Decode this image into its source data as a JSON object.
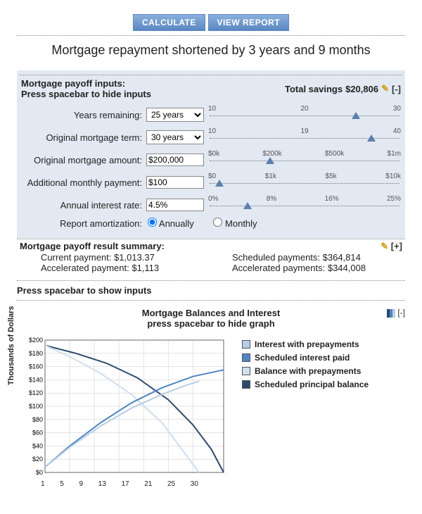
{
  "buttons": {
    "calculate": "CALCULATE",
    "view_report": "VIEW REPORT"
  },
  "title": "Mortgage repayment shortened by 3 years and 9 months",
  "inputs_header": {
    "line1": "Mortgage payoff inputs:",
    "line2": "Press spacebar to hide inputs",
    "total_savings_label": "Total savings",
    "total_savings_value": "$20,806",
    "toggle": "[-]"
  },
  "rows": {
    "years_remaining": {
      "label": "Years remaining:",
      "value": "25 years",
      "ticks": [
        "10",
        "20",
        "30"
      ],
      "thumb_pct": 77
    },
    "original_term": {
      "label": "Original mortgage term:",
      "value": "30 years",
      "ticks": [
        "10",
        "19",
        "40"
      ],
      "thumb_pct": 85
    },
    "original_amount": {
      "label": "Original mortgage amount:",
      "value": "$200,000",
      "ticks": [
        "$0k",
        "$200k",
        "$500k",
        "$1m"
      ],
      "thumb_pct": 32
    },
    "additional_payment": {
      "label": "Additional monthly payment:",
      "value": "$100",
      "ticks": [
        "$0",
        "$1k",
        "$5k",
        "$10k"
      ],
      "thumb_pct": 5
    },
    "interest_rate": {
      "label": "Annual interest rate:",
      "value": "4.5%",
      "ticks": [
        "0%",
        "8%",
        "16%",
        "25%"
      ],
      "thumb_pct": 20
    },
    "amortization": {
      "label": "Report amortization:",
      "opt1": "Annually",
      "opt2": "Monthly"
    }
  },
  "summary": {
    "title": "Mortgage payoff result summary:",
    "toggle": "[+]",
    "current_payment": "Current payment: $1,013.37",
    "accelerated_payment": "Accelerated payment: $1,113",
    "scheduled_payments": "Scheduled payments: $364,814",
    "accelerated_payments": "Accelerated payments: $344,008"
  },
  "show_inputs": "Press spacebar to show inputs",
  "chart": {
    "title": "Mortgage Balances and Interest",
    "subtitle": "press spacebar to hide graph",
    "toggle": "[-]",
    "ylabel": "Thousands of Dollars",
    "yticks": [
      "$200",
      "$180",
      "$160",
      "$140",
      "$120",
      "$100",
      "$80",
      "$60",
      "$40",
      "$20",
      "$0"
    ],
    "xticks": [
      "1",
      "5",
      "9",
      "13",
      "17",
      "21",
      "25",
      "30"
    ],
    "xlim": [
      1,
      30
    ],
    "ylim": [
      0,
      200
    ],
    "legend": [
      {
        "label": "Interest with prepayments",
        "color": "#b8cde6"
      },
      {
        "label": "Scheduled interest paid",
        "color": "#4f86c6"
      },
      {
        "label": "Balance with prepayments",
        "color": "#cfdff0"
      },
      {
        "label": "Scheduled principal balance",
        "color": "#2b4a6f"
      }
    ],
    "series": {
      "scheduled_balance": {
        "color": "#2b4a6f",
        "width": 2,
        "points": [
          [
            1,
            192
          ],
          [
            6,
            180
          ],
          [
            11,
            165
          ],
          [
            16,
            143
          ],
          [
            21,
            110
          ],
          [
            25,
            72
          ],
          [
            28,
            35
          ],
          [
            30,
            0
          ]
        ]
      },
      "balance_prepay": {
        "color": "#cfdff0",
        "width": 2,
        "points": [
          [
            1,
            192
          ],
          [
            5,
            175
          ],
          [
            10,
            150
          ],
          [
            15,
            118
          ],
          [
            20,
            75
          ],
          [
            24,
            25
          ],
          [
            26,
            0
          ]
        ]
      },
      "scheduled_interest": {
        "color": "#4f86c6",
        "width": 2,
        "points": [
          [
            1,
            8
          ],
          [
            5,
            40
          ],
          [
            10,
            75
          ],
          [
            15,
            105
          ],
          [
            20,
            128
          ],
          [
            25,
            145
          ],
          [
            30,
            155
          ]
        ]
      },
      "interest_prepay": {
        "color": "#b8cde6",
        "width": 2,
        "points": [
          [
            1,
            8
          ],
          [
            5,
            38
          ],
          [
            10,
            70
          ],
          [
            15,
            97
          ],
          [
            20,
            118
          ],
          [
            24,
            132
          ],
          [
            26,
            138
          ]
        ]
      }
    },
    "plot_bg": "#ffffff",
    "grid_color": "#c8c8c8"
  }
}
